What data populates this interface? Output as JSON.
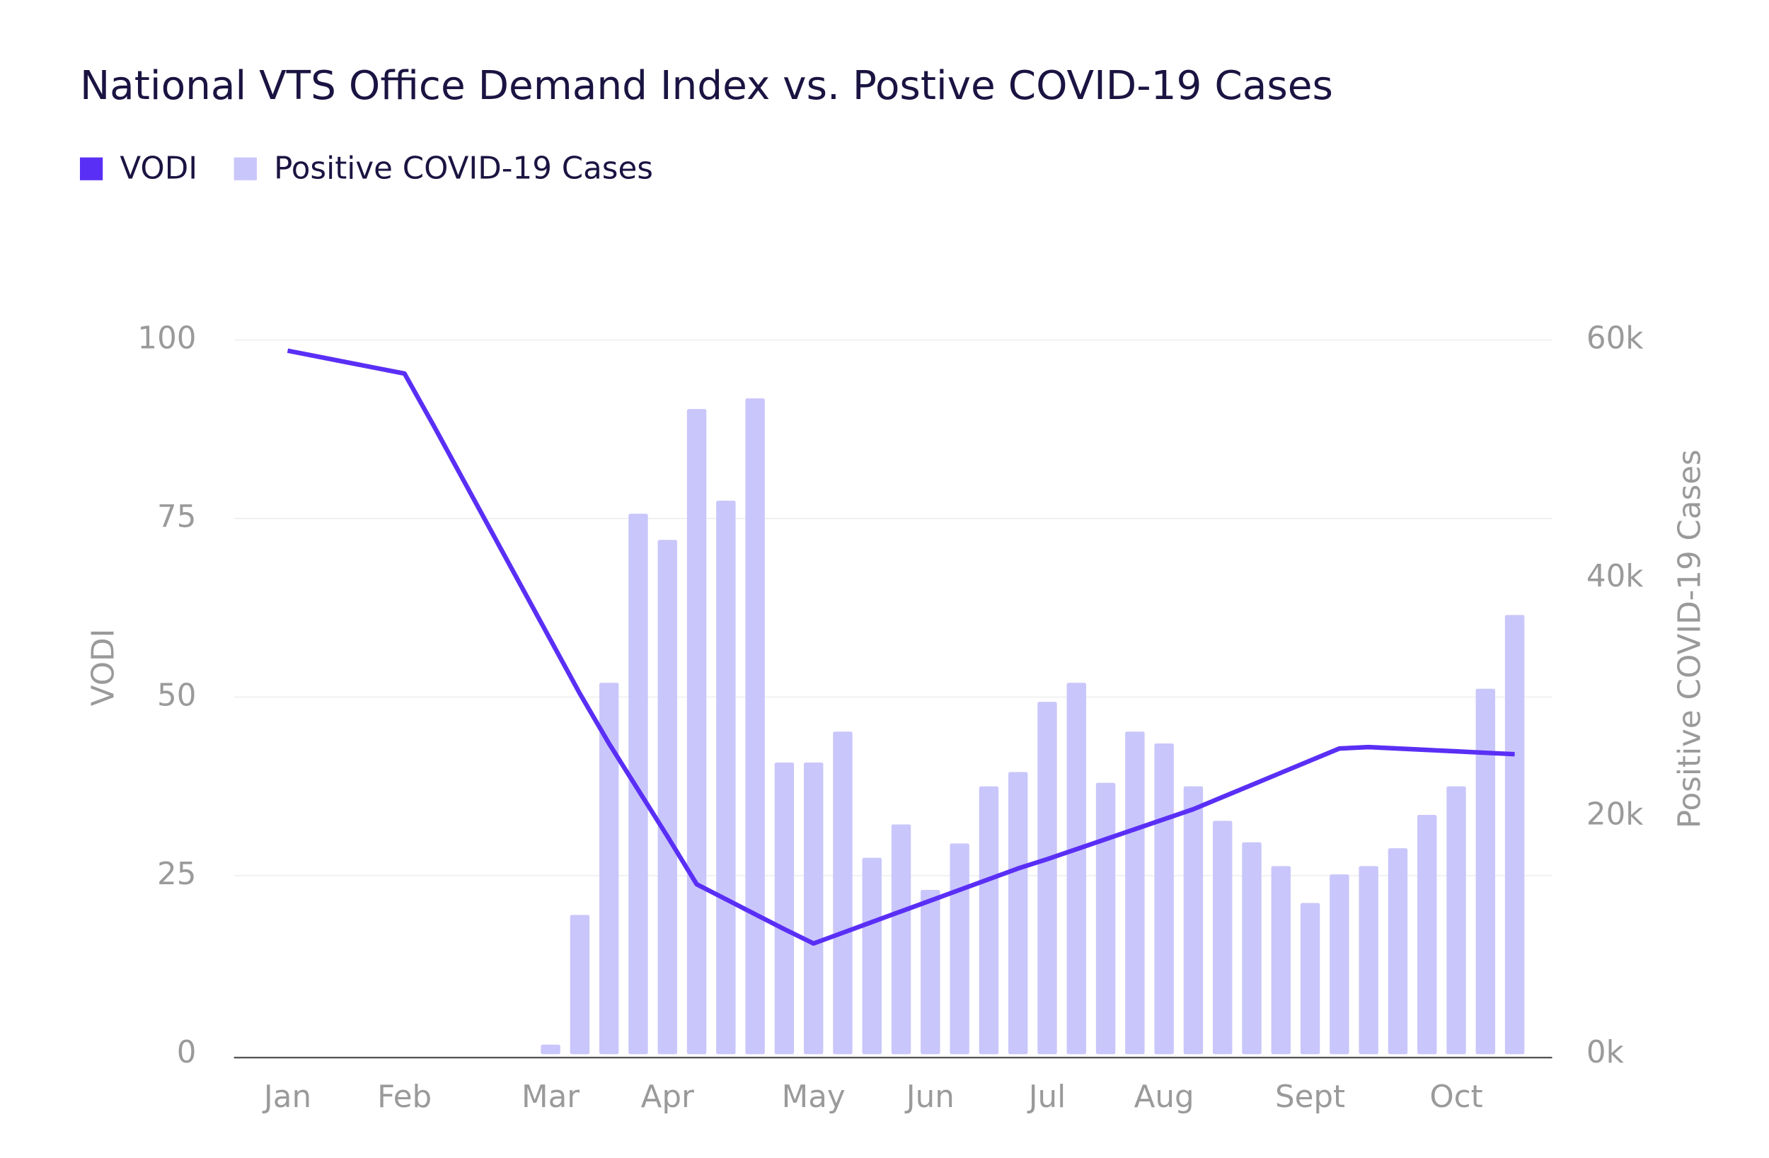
{
  "chart_data": {
    "type": "bar",
    "title": "National VTS Office Demand Index vs. Postive COVID-19 Cases",
    "ylabel": "VODI",
    "y2label": "Positive COVID-19 Cases",
    "categories": [
      "Jan",
      null,
      null,
      null,
      "Feb",
      null,
      null,
      null,
      null,
      "Mar",
      null,
      null,
      null,
      "Apr",
      null,
      null,
      null,
      null,
      "May",
      null,
      null,
      null,
      "Jun",
      null,
      null,
      null,
      "Jul",
      null,
      null,
      null,
      "Aug",
      null,
      null,
      null,
      null,
      "Sept",
      null,
      null,
      null,
      null,
      "Oct",
      null,
      null
    ],
    "series": [
      {
        "name": "VODI",
        "type": "line",
        "color": "#5a2ff5",
        "values": [
          98.5,
          97.7,
          96.9,
          96.1,
          95.3,
          88,
          80.5,
          73,
          65.5,
          58,
          50.5,
          43.5,
          37,
          30.5,
          23.8,
          21.7,
          19.6,
          17.5,
          15.5,
          17,
          18.5,
          20,
          21.5,
          23,
          24.5,
          26,
          27.3,
          28.7,
          30.1,
          31.5,
          32.9,
          34.3,
          36,
          37.7,
          39.4,
          41.1,
          42.8,
          43,
          42.8,
          42.6,
          42.4,
          42.2,
          42
        ]
      },
      {
        "name": "Positive COVID-19 Cases",
        "type": "bar",
        "axis": "y2",
        "color": "#c9c6fb",
        "values": [
          null,
          null,
          null,
          null,
          null,
          null,
          null,
          null,
          null,
          800,
          11700,
          31200,
          45400,
          43200,
          54200,
          46500,
          55100,
          24500,
          24500,
          27100,
          16500,
          19300,
          13800,
          17700,
          22500,
          23700,
          29600,
          31200,
          22800,
          27100,
          26100,
          22500,
          19600,
          17800,
          15800,
          12700,
          15100,
          15800,
          17300,
          20100,
          22500,
          30700,
          36900
        ]
      }
    ],
    "ylim": [
      0,
      100
    ],
    "yticks": [
      0,
      25,
      50,
      75,
      100
    ],
    "y2lim": [
      0,
      60000
    ],
    "y2ticks": [
      {
        "value": 0,
        "label": "0k"
      },
      {
        "value": 20000,
        "label": "20k"
      },
      {
        "value": 40000,
        "label": "40k"
      },
      {
        "value": 60000,
        "label": "60k"
      }
    ],
    "grid": true,
    "legend": "top-left"
  }
}
